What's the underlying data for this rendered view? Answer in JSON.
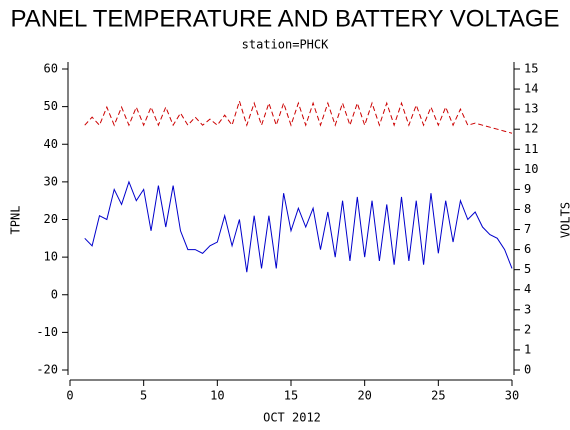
{
  "chart_data": {
    "type": "line",
    "title": "PANEL TEMPERATURE AND BATTERY VOLTAGE",
    "subtitle": "station=PHCK",
    "x_label": "OCT 2012",
    "y_label": "TPNL",
    "y2_label": "VOLTS",
    "xlim": [
      0,
      30
    ],
    "xticks": [
      0,
      5,
      10,
      15,
      20,
      25,
      30
    ],
    "ylim": [
      -20,
      60
    ],
    "yticks": [
      -20,
      -10,
      0,
      10,
      20,
      30,
      40,
      50,
      60
    ],
    "y2lim": [
      0,
      15
    ],
    "y2ticks": [
      0,
      1,
      2,
      3,
      4,
      5,
      6,
      7,
      8,
      9,
      10,
      11,
      12,
      13,
      14,
      15
    ],
    "x": [
      1,
      1.5,
      2,
      2.5,
      3,
      3.5,
      4,
      4.5,
      5,
      5.5,
      6,
      6.5,
      7,
      7.5,
      8,
      8.5,
      9,
      9.5,
      10,
      10.5,
      11,
      11.5,
      12,
      12.5,
      13,
      13.5,
      14,
      14.5,
      15,
      15.5,
      16,
      16.5,
      17,
      17.5,
      18,
      18.5,
      19,
      19.5,
      20,
      20.5,
      21,
      21.5,
      22,
      22.5,
      23,
      23.5,
      24,
      24.5,
      25,
      25.5,
      26,
      26.5,
      27,
      27.5,
      28,
      28.5,
      29,
      29.5,
      30
    ],
    "series": [
      {
        "name": "TPNL",
        "color": "#0000cc",
        "dashed": false,
        "values": [
          15,
          13,
          21,
          20,
          28,
          24,
          30,
          25,
          28,
          17,
          29,
          18,
          29,
          17,
          12,
          12,
          11,
          13,
          14,
          21,
          13,
          20,
          6,
          21,
          7,
          21,
          7,
          27,
          17,
          23,
          18,
          23,
          12,
          22,
          10,
          25,
          9,
          26,
          10,
          25,
          9,
          24,
          8,
          26,
          9,
          25,
          8,
          27,
          11,
          25,
          14,
          25,
          20,
          22,
          18,
          16,
          15,
          12,
          7
        ]
      },
      {
        "name": "VOLTS",
        "color": "#cc0000",
        "axis": "y2",
        "dashed": true,
        "values": [
          12.2,
          12.6,
          12.2,
          13.1,
          12.2,
          13.1,
          12.2,
          13.1,
          12.2,
          13.1,
          12.2,
          13.1,
          12.2,
          12.8,
          12.2,
          12.6,
          12.2,
          12.5,
          12.2,
          12.7,
          12.2,
          13.4,
          12.2,
          13.3,
          12.2,
          13.3,
          12.2,
          13.3,
          12.2,
          13.3,
          12.2,
          13.3,
          12.2,
          13.3,
          12.2,
          13.3,
          12.2,
          13.3,
          12.2,
          13.3,
          12.2,
          13.3,
          12.2,
          13.3,
          12.2,
          13.2,
          12.2,
          13.1,
          12.2,
          13.1,
          12.2,
          13.0,
          12.2,
          12.3,
          12.2,
          12.1,
          12.0,
          11.9,
          11.8
        ]
      }
    ]
  }
}
